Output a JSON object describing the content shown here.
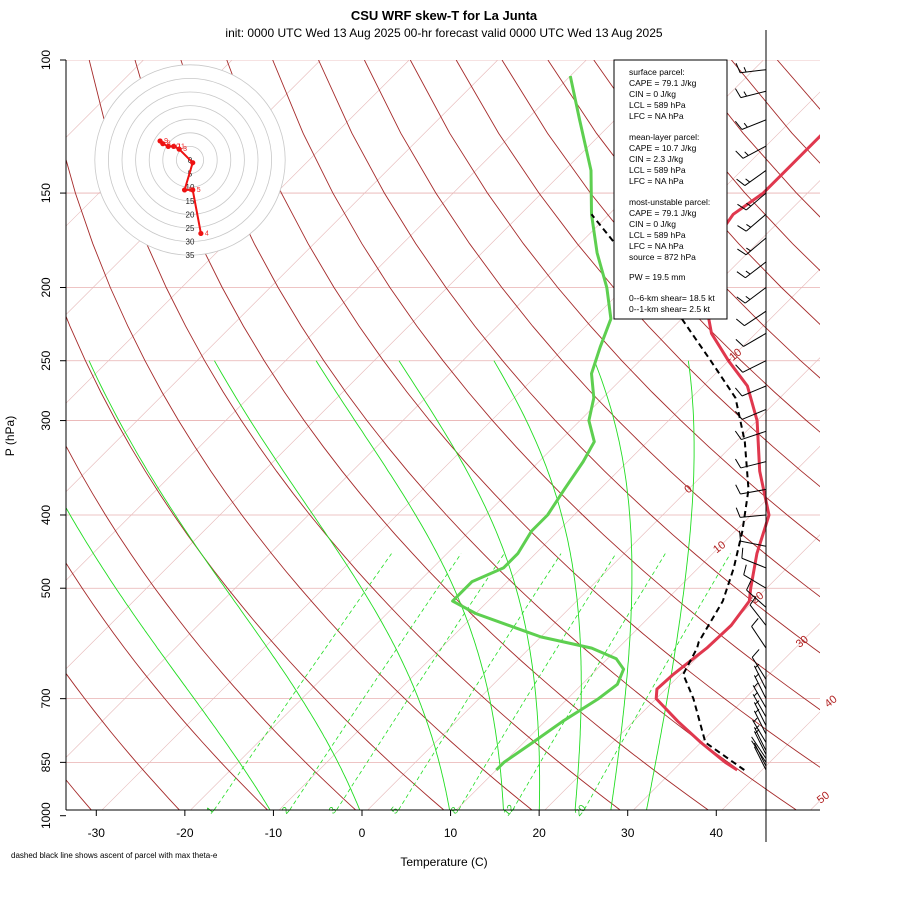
{
  "header": {
    "title": "CSU WRF skew-T for La Junta",
    "subtitle": "init: 0000 UTC Wed 13 Aug 2025     00-hr forecast valid 0000 UTC Wed 13 Aug 2025"
  },
  "footer_note": "dashed black line shows ascent of parcel with max theta-e",
  "info_box": {
    "surface_title": "surface parcel:",
    "surface_cape": "CAPE = 79.1 J/kg",
    "surface_cin": "CIN = 0 J/kg",
    "surface_lcl": "LCL = 589 hPa",
    "surface_lfc": "LFC = NA hPa",
    "mean_title": "mean-layer parcel:",
    "mean_cape": "CAPE = 10.7 J/kg",
    "mean_cin": "CIN = 2.3 J/kg",
    "mean_lcl": "LCL = 589 hPa",
    "mean_lfc": "LFC = NA hPa",
    "mu_title": "most-unstable parcel:",
    "mu_cape": "CAPE = 79.1 J/kg",
    "mu_cin": "CIN = 0 J/kg",
    "mu_lcl": "LCL = 589 hPa",
    "mu_lfc": "LFC = NA hPa",
    "mu_source": "source = 872 hPa",
    "pw": "PW =  19.5 mm",
    "shear06": "0--6-km shear= 18.5 kt",
    "shear01": "0--1-km shear= 2.5 kt"
  },
  "chart_data": {
    "type": "skew-t",
    "xlabel": "Temperature (C)",
    "ylabel": "P (hPa)",
    "x_ticks": [
      "-30",
      "-20",
      "-10",
      "0",
      "10",
      "20",
      "30",
      "40"
    ],
    "x_tick_values": [
      -30,
      -20,
      -10,
      0,
      10,
      20,
      30,
      40
    ],
    "p_ticks": [
      "100",
      "150",
      "200",
      "250",
      "300",
      "400",
      "500",
      "700",
      "850",
      "1000"
    ],
    "p_tick_values": [
      100,
      150,
      200,
      250,
      300,
      400,
      500,
      700,
      850,
      1000
    ],
    "xlim": [
      -33,
      45
    ],
    "plim": [
      100,
      1000
    ],
    "isotherm_labels": [
      "-10",
      "0",
      "10",
      "20",
      "30",
      "40",
      "50"
    ],
    "isotherm_label_values": [
      -10,
      0,
      10,
      20,
      30,
      40,
      50
    ],
    "mixing_ratio_labels": [
      "1",
      "2",
      "3",
      "5",
      "8",
      "12",
      "20"
    ],
    "colors": {
      "temperature": "#e0384e",
      "dewpoint": "#5ecf50",
      "parcel": "#000000",
      "dry_adiabat": "#a52a2a",
      "moist_adiabat": "#22dd22",
      "hodograph": "#ee1111"
    },
    "series": [
      {
        "name": "temperature",
        "points": [
          [
            37.2,
            870
          ],
          [
            35,
            850
          ],
          [
            30,
            800
          ],
          [
            25,
            750
          ],
          [
            20,
            700
          ],
          [
            19,
            680
          ],
          [
            19.2,
            650
          ],
          [
            20,
            600
          ],
          [
            20.2,
            560
          ],
          [
            19.5,
            520
          ],
          [
            18.2,
            500
          ],
          [
            15,
            450
          ],
          [
            12,
            400
          ],
          [
            6,
            350
          ],
          [
            0,
            300
          ],
          [
            -5,
            270
          ],
          [
            -10,
            250
          ],
          [
            -15,
            230
          ],
          [
            -19,
            210
          ],
          [
            -23,
            190
          ],
          [
            -25,
            175
          ],
          [
            -26,
            160
          ],
          [
            -25,
            150
          ],
          [
            -25,
            140
          ],
          [
            -25,
            125
          ],
          [
            -27,
            110
          ]
        ]
      },
      {
        "name": "dewpoint",
        "points": [
          [
            10,
            870
          ],
          [
            10,
            850
          ],
          [
            11,
            800
          ],
          [
            12,
            750
          ],
          [
            13.5,
            700
          ],
          [
            14,
            670
          ],
          [
            13,
            640
          ],
          [
            11,
            620
          ],
          [
            7,
            600
          ],
          [
            0,
            580
          ],
          [
            -10,
            540
          ],
          [
            -14,
            520
          ],
          [
            -14,
            490
          ],
          [
            -12,
            470
          ],
          [
            -12,
            450
          ],
          [
            -13,
            420
          ],
          [
            -13,
            400
          ],
          [
            -14,
            370
          ],
          [
            -15,
            340
          ],
          [
            -16,
            320
          ],
          [
            -19,
            300
          ],
          [
            -21,
            280
          ],
          [
            -24,
            260
          ],
          [
            -26,
            240
          ],
          [
            -28,
            220
          ],
          [
            -32,
            200
          ],
          [
            -37,
            180
          ],
          [
            -42,
            160
          ],
          [
            -47,
            140
          ],
          [
            -54,
            120
          ],
          [
            -60,
            105
          ]
        ]
      },
      {
        "name": "parcel",
        "points": [
          [
            38,
            870
          ],
          [
            30.5,
            800
          ],
          [
            24.2,
            700
          ],
          [
            20.3,
            650
          ],
          [
            18.9,
            600
          ],
          [
            18.4,
            589
          ],
          [
            16.5,
            520
          ],
          [
            14,
            470
          ],
          [
            10.8,
            420
          ],
          [
            6.8,
            370
          ],
          [
            1,
            320
          ],
          [
            -5,
            280
          ],
          [
            -12,
            250
          ],
          [
            -20,
            220
          ],
          [
            -28,
            195
          ],
          [
            -36,
            175
          ],
          [
            -42,
            160
          ]
        ]
      }
    ],
    "wind_barbs": [
      {
        "p": 870,
        "u": 1,
        "v": -2,
        "kt": 2
      },
      {
        "p": 860,
        "u": 1,
        "v": -2,
        "kt": 2
      },
      {
        "p": 850,
        "u": 2,
        "v": -3,
        "kt": 4
      },
      {
        "p": 840,
        "u": 2,
        "v": -3,
        "kt": 4
      },
      {
        "p": 830,
        "u": 2,
        "v": -4,
        "kt": 5
      },
      {
        "p": 820,
        "u": 2,
        "v": -4,
        "kt": 5
      },
      {
        "p": 800,
        "u": 3,
        "v": -5,
        "kt": 6
      },
      {
        "p": 780,
        "u": 3,
        "v": -6,
        "kt": 7
      },
      {
        "p": 760,
        "u": 3,
        "v": -6,
        "kt": 7
      },
      {
        "p": 740,
        "u": 4,
        "v": -7,
        "kt": 8
      },
      {
        "p": 720,
        "u": 4,
        "v": -7,
        "kt": 8
      },
      {
        "p": 700,
        "u": 4,
        "v": -8,
        "kt": 9
      },
      {
        "p": 680,
        "u": 4,
        "v": -8,
        "kt": 9
      },
      {
        "p": 660,
        "u": 5,
        "v": -8,
        "kt": 10
      },
      {
        "p": 600,
        "u": 6,
        "v": -9,
        "kt": 11
      },
      {
        "p": 560,
        "u": 7,
        "v": -9,
        "kt": 11
      },
      {
        "p": 530,
        "u": 9,
        "v": -8,
        "kt": 12
      },
      {
        "p": 500,
        "u": 10,
        "v": -6,
        "kt": 12
      },
      {
        "p": 470,
        "u": 10,
        "v": -4,
        "kt": 11
      },
      {
        "p": 440,
        "u": 10,
        "v": -2,
        "kt": 10
      },
      {
        "p": 400,
        "u": 11,
        "v": 1,
        "kt": 11
      },
      {
        "p": 370,
        "u": 11,
        "v": 2,
        "kt": 11
      },
      {
        "p": 340,
        "u": 12,
        "v": 3,
        "kt": 12
      },
      {
        "p": 310,
        "u": 12,
        "v": 4,
        "kt": 13
      },
      {
        "p": 290,
        "u": 12,
        "v": 5,
        "kt": 13
      },
      {
        "p": 270,
        "u": 12,
        "v": 5,
        "kt": 13
      },
      {
        "p": 250,
        "u": 12,
        "v": 6,
        "kt": 13
      },
      {
        "p": 230,
        "u": 12,
        "v": 7,
        "kt": 14
      },
      {
        "p": 215,
        "u": 12,
        "v": 8,
        "kt": 14
      },
      {
        "p": 200,
        "u": 12,
        "v": 9,
        "kt": 15
      },
      {
        "p": 185,
        "u": 13,
        "v": 10,
        "kt": 16
      },
      {
        "p": 172,
        "u": 13,
        "v": 11,
        "kt": 17
      },
      {
        "p": 160,
        "u": 14,
        "v": 12,
        "kt": 18
      },
      {
        "p": 150,
        "u": 14,
        "v": 12,
        "kt": 18
      },
      {
        "p": 140,
        "u": 14,
        "v": 10,
        "kt": 17
      },
      {
        "p": 130,
        "u": 15,
        "v": 8,
        "kt": 17
      },
      {
        "p": 120,
        "u": 15,
        "v": 6,
        "kt": 16
      },
      {
        "p": 110,
        "u": 16,
        "v": 4,
        "kt": 16
      },
      {
        "p": 103,
        "u": 17,
        "v": 2,
        "kt": 17
      }
    ],
    "hodograph": {
      "ring_labels": [
        "0",
        "5",
        "10",
        "15",
        "20",
        "25",
        "30",
        "35"
      ],
      "points": [
        {
          "label": "4",
          "u": 4,
          "v": -27
        },
        {
          "label": "5",
          "u": 1,
          "v": -11
        },
        {
          "label": "6",
          "u": -2,
          "v": -11
        },
        {
          "label": "",
          "u": 1,
          "v": -1
        },
        {
          "label": "3",
          "u": -4,
          "v": 4
        },
        {
          "label": "11",
          "u": -6,
          "v": 5
        },
        {
          "label": "10",
          "u": -8,
          "v": 5
        },
        {
          "label": "8",
          "u": -10,
          "v": 6
        },
        {
          "label": "9",
          "u": -11,
          "v": 7
        }
      ]
    }
  }
}
